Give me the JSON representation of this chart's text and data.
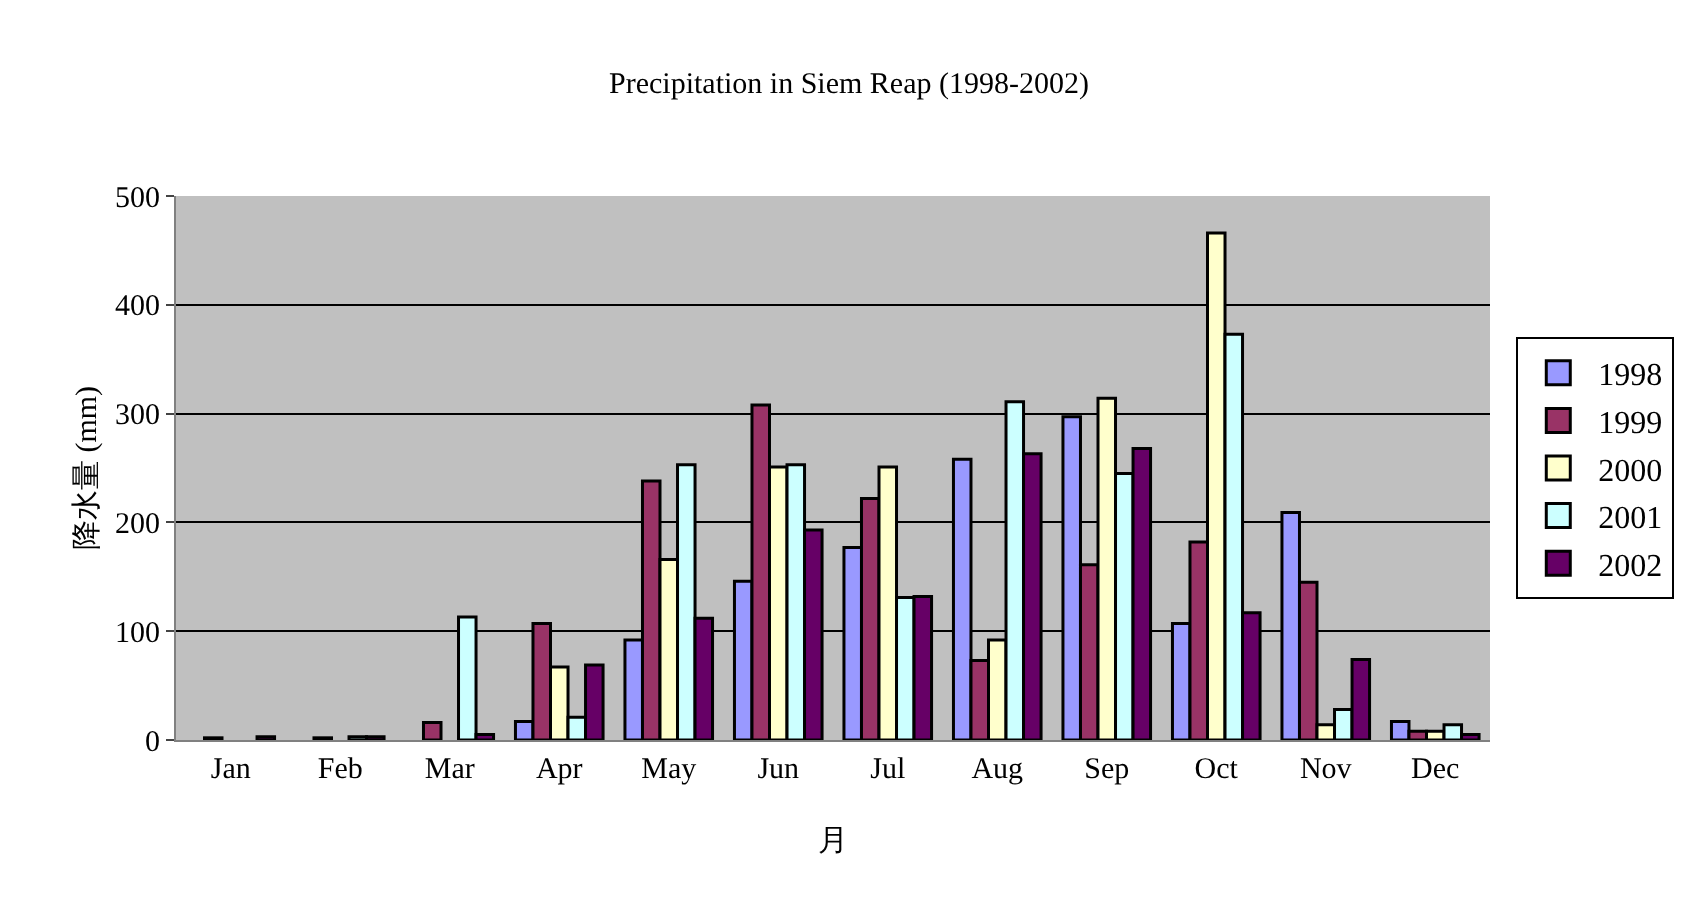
{
  "chart_data": {
    "type": "bar",
    "title": "Precipitation in Siem Reap (1998-2002)",
    "xlabel": "月",
    "ylabel": "降水量 (mm)",
    "categories": [
      "Jan",
      "Feb",
      "Mar",
      "Apr",
      "May",
      "Jun",
      "Jul",
      "Aug",
      "Sep",
      "Oct",
      "Nov",
      "Dec"
    ],
    "series": [
      {
        "name": "1998",
        "color": "#9999ff",
        "values": [
          null,
          null,
          null,
          17,
          92,
          146,
          177,
          258,
          297,
          107,
          209,
          17
        ]
      },
      {
        "name": "1999",
        "color": "#993366",
        "values": [
          2,
          2,
          16,
          107,
          238,
          308,
          222,
          73,
          161,
          182,
          145,
          8
        ]
      },
      {
        "name": "2000",
        "color": "#ffffcc",
        "values": [
          null,
          null,
          null,
          67,
          166,
          251,
          251,
          92,
          314,
          466,
          14,
          8
        ]
      },
      {
        "name": "2001",
        "color": "#ccffff",
        "values": [
          null,
          3,
          113,
          21,
          253,
          253,
          131,
          311,
          245,
          373,
          28,
          14
        ]
      },
      {
        "name": "2002",
        "color": "#660066",
        "values": [
          3,
          3,
          5,
          69,
          112,
          193,
          132,
          263,
          268,
          117,
          74,
          5
        ]
      }
    ],
    "ylim": [
      0,
      500
    ],
    "yticks": [
      0,
      100,
      200,
      300,
      400,
      500
    ],
    "grid": "y",
    "legend": "right"
  }
}
